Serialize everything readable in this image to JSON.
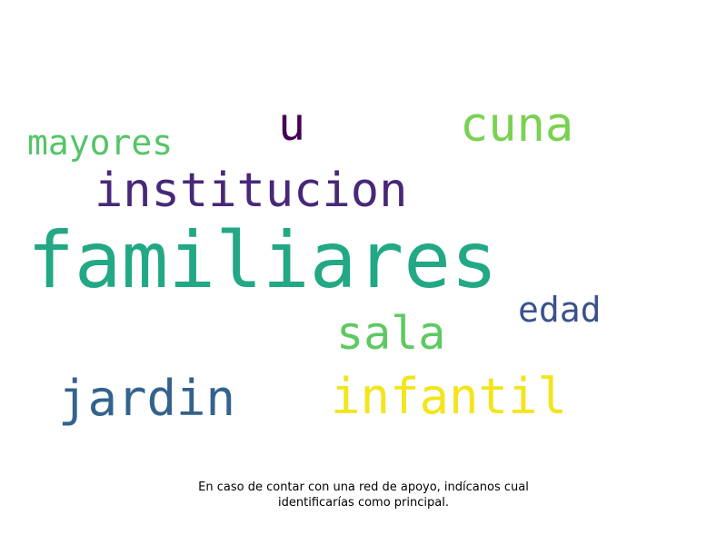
{
  "chart_data": {
    "type": "wordcloud",
    "words": [
      {
        "id": "familiares",
        "text": "familiares",
        "color": "#22a884"
      },
      {
        "id": "institucion",
        "text": "institucion",
        "color": "#482878"
      },
      {
        "id": "infantil",
        "text": "infantil",
        "color": "#f2e51d"
      },
      {
        "id": "jardin",
        "text": "jardin",
        "color": "#33638d"
      },
      {
        "id": "cuna",
        "text": "cuna",
        "color": "#7ad151"
      },
      {
        "id": "sala",
        "text": "sala",
        "color": "#5ec962"
      },
      {
        "id": "mayores",
        "text": "mayores",
        "color": "#54c568"
      },
      {
        "id": "edad",
        "text": "edad",
        "color": "#3b528b"
      },
      {
        "id": "u",
        "text": "u",
        "color": "#440154"
      }
    ]
  },
  "caption": {
    "line1": "En caso de contar con una red de apoyo, indícanos cual",
    "line2": "identificarías como principal."
  }
}
